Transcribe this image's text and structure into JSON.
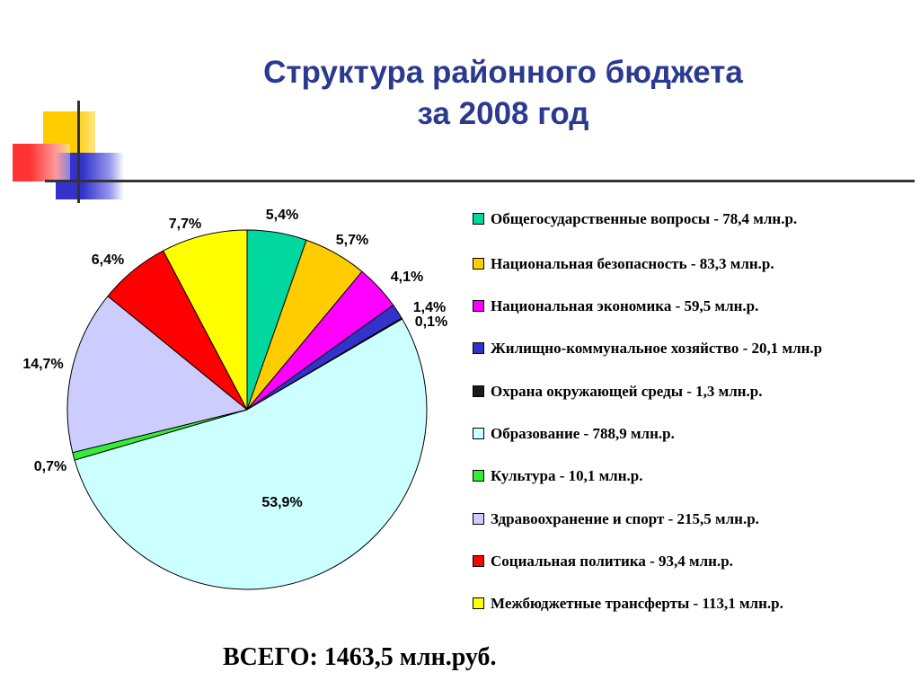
{
  "slide": {
    "title_line1": "Структура районного бюджета",
    "title_line2": "за 2008 год",
    "total": "ВСЕГО: 1463,5 млн.руб."
  },
  "colors": {
    "title": "#2b3a8f",
    "deco_yellow": "#ffcc00",
    "deco_red": "#ff3333",
    "deco_blue": "#3333cc",
    "deco_line": "#333333"
  },
  "chart_data": {
    "type": "pie",
    "title": "",
    "slices": [
      {
        "label": "Общегосударственные вопросы - 78,4 млн.р.",
        "value": 78.4,
        "percent_label": "5,4%",
        "color": "#00d8a0"
      },
      {
        "label": "Национальная безопасность - 83,3 млн.р.",
        "value": 83.3,
        "percent_label": "5,7%",
        "color": "#ffcc00"
      },
      {
        "label": "Национальная экономика - 59,5 млн.р.",
        "value": 59.5,
        "percent_label": "4,1%",
        "color": "#ff00ff"
      },
      {
        "label": "Жилищно-коммунальное хозяйство - 20,1 млн.р",
        "value": 20.1,
        "percent_label": "1,4%",
        "color": "#3333cc"
      },
      {
        "label": "Охрана окружающей среды - 1,3 млн.р.",
        "value": 1.3,
        "percent_label": "0,1%",
        "color": "#1a1a1a"
      },
      {
        "label": "Образование - 788,9 млн.р.",
        "value": 788.9,
        "percent_label": "53,9%",
        "color": "#ccffff"
      },
      {
        "label": "Культура - 10,1 млн.р.",
        "value": 10.1,
        "percent_label": "0,7%",
        "color": "#33ee33"
      },
      {
        "label": "Здравоохранение и спорт - 215,5 млн.р.",
        "value": 215.5,
        "percent_label": "14,7%",
        "color": "#ccccff"
      },
      {
        "label": "Социальная политика - 93,4 млн.р.",
        "value": 93.4,
        "percent_label": "6,4%",
        "color": "#ff0000"
      },
      {
        "label": "Межбюджетные трансферты - 113,1 млн.р.",
        "value": 113.1,
        "percent_label": "7,7%",
        "color": "#ffff00"
      }
    ],
    "legend_position": "right"
  }
}
